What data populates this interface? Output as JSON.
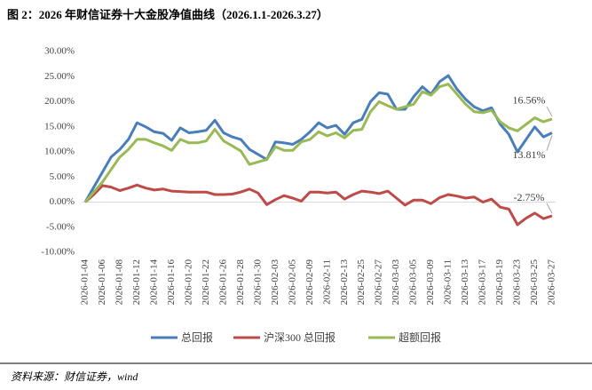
{
  "chart_data": {
    "type": "line",
    "title": "图 2：2026 年财信证券十大金股净值曲线（2026.1.1-2026.3.27）",
    "source": "资料来源：财信证券，wind",
    "categories": [
      "2026-01-04",
      null,
      "2026-01-06",
      null,
      "2026-01-08",
      null,
      "2026-01-12",
      null,
      "2026-01-14",
      null,
      "2026-01-16",
      null,
      "2026-01-20",
      null,
      "2026-01-22",
      null,
      "2026-01-26",
      null,
      "2026-01-28",
      null,
      "2026-01-30",
      null,
      "2026-02-03",
      null,
      "2026-02-05",
      null,
      "2026-02-09",
      null,
      "2026-02-11",
      null,
      "2026-02-13",
      null,
      "2026-02-25",
      null,
      "2026-02-27",
      null,
      "2026-03-03",
      null,
      "2026-03-05",
      null,
      "2026-03-09",
      null,
      "2026-03-11",
      null,
      "2026-03-13",
      null,
      "2026-03-17",
      null,
      "2026-03-19",
      null,
      "2026-03-23",
      null,
      "2026-03-25",
      null,
      "2026-03-27"
    ],
    "series": [
      {
        "name": "总回报",
        "color": "#4a7ebb",
        "values": [
          0,
          3,
          6,
          9,
          10.5,
          12.5,
          15.8,
          15,
          14,
          13.7,
          12.3,
          14.8,
          13.8,
          14,
          14.3,
          16.3,
          13.8,
          13,
          12.5,
          10.5,
          9.5,
          8.5,
          12,
          11.8,
          11.5,
          12.5,
          14,
          15.8,
          14.8,
          15.3,
          13.5,
          15.8,
          16.5,
          20,
          21.8,
          21.5,
          18.5,
          18.5,
          21,
          23,
          21.5,
          24,
          25.2,
          22.5,
          20.5,
          19,
          18.2,
          18.8,
          15.5,
          13.5,
          10,
          12.5,
          15,
          13,
          13.81
        ]
      },
      {
        "name": "沪深300 总回报",
        "color": "#be4b48",
        "values": [
          0,
          1.5,
          3.3,
          3,
          2.3,
          2.8,
          3.4,
          2.8,
          2.4,
          2.6,
          2.2,
          2.1,
          2,
          2,
          2,
          1.5,
          1.5,
          1.6,
          2,
          2.6,
          1.8,
          -0.5,
          0.5,
          1.3,
          0.8,
          0.2,
          2,
          2,
          1.8,
          2,
          0.6,
          1.5,
          2.2,
          2,
          1.7,
          2.2,
          0.8,
          -0.6,
          0.4,
          0.4,
          -0.3,
          0.9,
          1.5,
          1.2,
          0.8,
          1,
          0,
          0.6,
          -1,
          -1.4,
          -4.5,
          -3.2,
          -2.2,
          -3.3,
          -2.75
        ]
      },
      {
        "name": "超额回报",
        "color": "#98b954",
        "values": [
          0,
          2,
          4,
          6.5,
          9,
          10.5,
          12.5,
          12.5,
          11.8,
          11.2,
          10.3,
          12.5,
          11.8,
          11.8,
          12.2,
          14.5,
          12.2,
          11.2,
          10.2,
          7.5,
          8,
          8.5,
          11,
          10.3,
          10.3,
          12,
          12.5,
          14,
          13.2,
          13.8,
          12.8,
          14.3,
          14.5,
          18,
          20,
          19.2,
          18.5,
          19,
          19.5,
          22,
          21.3,
          23,
          23.5,
          21.5,
          19.5,
          18,
          17.8,
          18.3,
          16,
          14.8,
          14.2,
          15.5,
          16.8,
          16,
          16.56
        ]
      }
    ],
    "annotations": [
      "16.56%",
      "13.81%",
      "-2.75%"
    ],
    "ylim": [
      -10,
      30
    ],
    "yticks": [
      {
        "value": -10,
        "label": "-10.00%"
      },
      {
        "value": -5,
        "label": "-5.00%"
      },
      {
        "value": 0,
        "label": "0.00%"
      },
      {
        "value": 5,
        "label": "5.00%"
      },
      {
        "value": 10,
        "label": "10.00%"
      },
      {
        "value": 15,
        "label": "15.00%"
      },
      {
        "value": 20,
        "label": "20.00%"
      },
      {
        "value": 25,
        "label": "25.00%"
      },
      {
        "value": 30,
        "label": "30.00%"
      }
    ],
    "grid": false
  }
}
